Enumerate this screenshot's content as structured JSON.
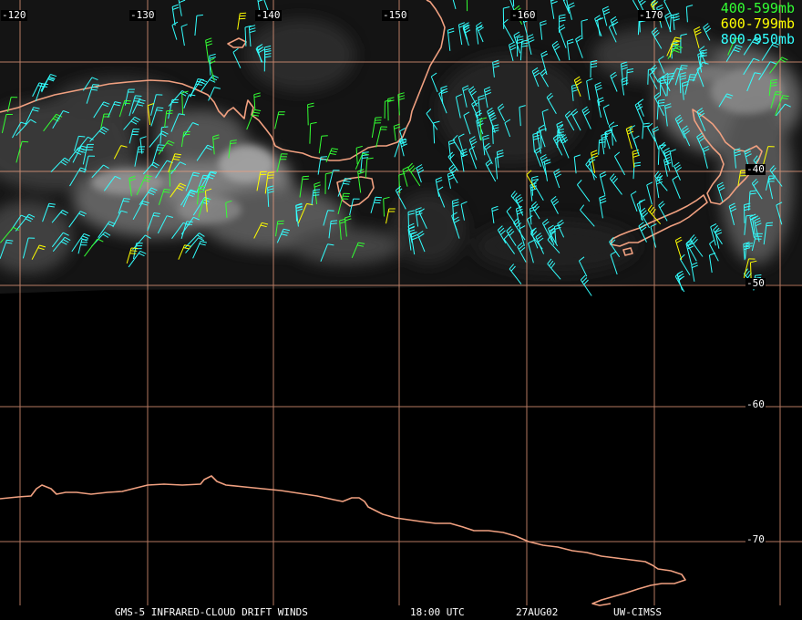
{
  "map": {
    "longitude_labels": [
      "-120",
      "-130",
      "-140",
      "-150",
      "-160",
      "-170"
    ],
    "latitude_labels": [
      "-40",
      "-50",
      "-60",
      "-70"
    ],
    "grid_color": "#f0a080",
    "coast_color": "#f0a080"
  },
  "legend": [
    {
      "label": "400-599mb",
      "color": "#33ff33"
    },
    {
      "label": "600-799mb",
      "color": "#ffff00"
    },
    {
      "label": "800-950mb",
      "color": "#33ffff"
    }
  ],
  "caption": {
    "product": "GMS-5 INFRARED-CLOUD DRIFT WINDS",
    "time": "18:00 UTC",
    "date": "27AUG02",
    "source": "UW-CIMSS"
  }
}
